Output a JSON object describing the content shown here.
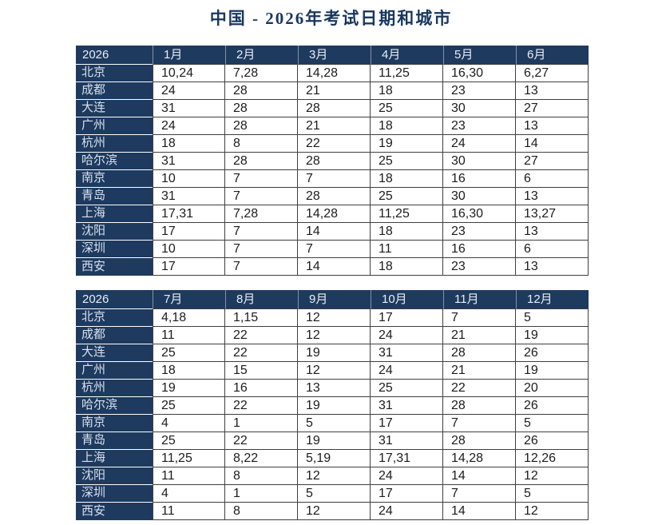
{
  "title": "中国 - 2026年考试日期和城市",
  "colors": {
    "header_navy": "#1e3a5f",
    "title_navy": "#17375e",
    "grid_border": "#3f3f3f",
    "header_text": "#e9eef6",
    "city_text": "#d7e0ee",
    "data_text": "#1c1c1c"
  },
  "tables": [
    {
      "year": "2026",
      "months": [
        "1月",
        "2月",
        "3月",
        "4月",
        "5月",
        "6月"
      ],
      "rows": [
        {
          "city": "北京",
          "values": [
            "10,24",
            "7,28",
            "14,28",
            "11,25",
            "16,30",
            "6,27"
          ]
        },
        {
          "city": "成都",
          "values": [
            "24",
            "28",
            "21",
            "18",
            "23",
            "13"
          ]
        },
        {
          "city": "大连",
          "values": [
            "31",
            "28",
            "28",
            "25",
            "30",
            "27"
          ]
        },
        {
          "city": "广州",
          "values": [
            "24",
            "28",
            "21",
            "18",
            "23",
            "13"
          ]
        },
        {
          "city": "杭州",
          "values": [
            "18",
            "8",
            "22",
            "19",
            "24",
            "14"
          ]
        },
        {
          "city": "哈尔滨",
          "values": [
            "31",
            "28",
            "28",
            "25",
            "30",
            "27"
          ]
        },
        {
          "city": "南京",
          "values": [
            "10",
            "7",
            "7",
            "18",
            "16",
            "6"
          ]
        },
        {
          "city": "青岛",
          "values": [
            "31",
            "7",
            "28",
            "25",
            "30",
            "13"
          ]
        },
        {
          "city": "上海",
          "values": [
            "17,31",
            "7,28",
            "14,28",
            "11,25",
            "16,30",
            "13,27"
          ]
        },
        {
          "city": "沈阳",
          "values": [
            "17",
            "7",
            "14",
            "18",
            "23",
            "13"
          ]
        },
        {
          "city": "深圳",
          "values": [
            "10",
            "7",
            "7",
            "11",
            "16",
            "6"
          ]
        },
        {
          "city": "西安",
          "values": [
            "17",
            "7",
            "14",
            "18",
            "23",
            "13"
          ]
        }
      ]
    },
    {
      "year": "2026",
      "months": [
        "7月",
        "8月",
        "9月",
        "10月",
        "11月",
        "12月"
      ],
      "rows": [
        {
          "city": "北京",
          "values": [
            "4,18",
            "1,15",
            "12",
            "17",
            "7",
            "5"
          ]
        },
        {
          "city": "成都",
          "values": [
            "11",
            "22",
            "12",
            "24",
            "21",
            "19"
          ]
        },
        {
          "city": "大连",
          "values": [
            "25",
            "22",
            "19",
            "31",
            "28",
            "26"
          ]
        },
        {
          "city": "广州",
          "values": [
            "18",
            "15",
            "12",
            "24",
            "21",
            "19"
          ]
        },
        {
          "city": "杭州",
          "values": [
            "19",
            "16",
            "13",
            "25",
            "22",
            "20"
          ]
        },
        {
          "city": "哈尔滨",
          "values": [
            "25",
            "22",
            "19",
            "31",
            "28",
            "26"
          ]
        },
        {
          "city": "南京",
          "values": [
            "4",
            "1",
            "5",
            "17",
            "7",
            "5"
          ]
        },
        {
          "city": "青岛",
          "values": [
            "25",
            "22",
            "19",
            "31",
            "28",
            "26"
          ]
        },
        {
          "city": "上海",
          "values": [
            "11,25",
            "8,22",
            "5,19",
            "17,31",
            "14,28",
            "12,26"
          ]
        },
        {
          "city": "沈阳",
          "values": [
            "11",
            "8",
            "12",
            "24",
            "14",
            "12"
          ]
        },
        {
          "city": "深圳",
          "values": [
            "4",
            "1",
            "5",
            "17",
            "7",
            "5"
          ]
        },
        {
          "city": "西安",
          "values": [
            "11",
            "8",
            "12",
            "24",
            "14",
            "12"
          ]
        }
      ]
    }
  ]
}
